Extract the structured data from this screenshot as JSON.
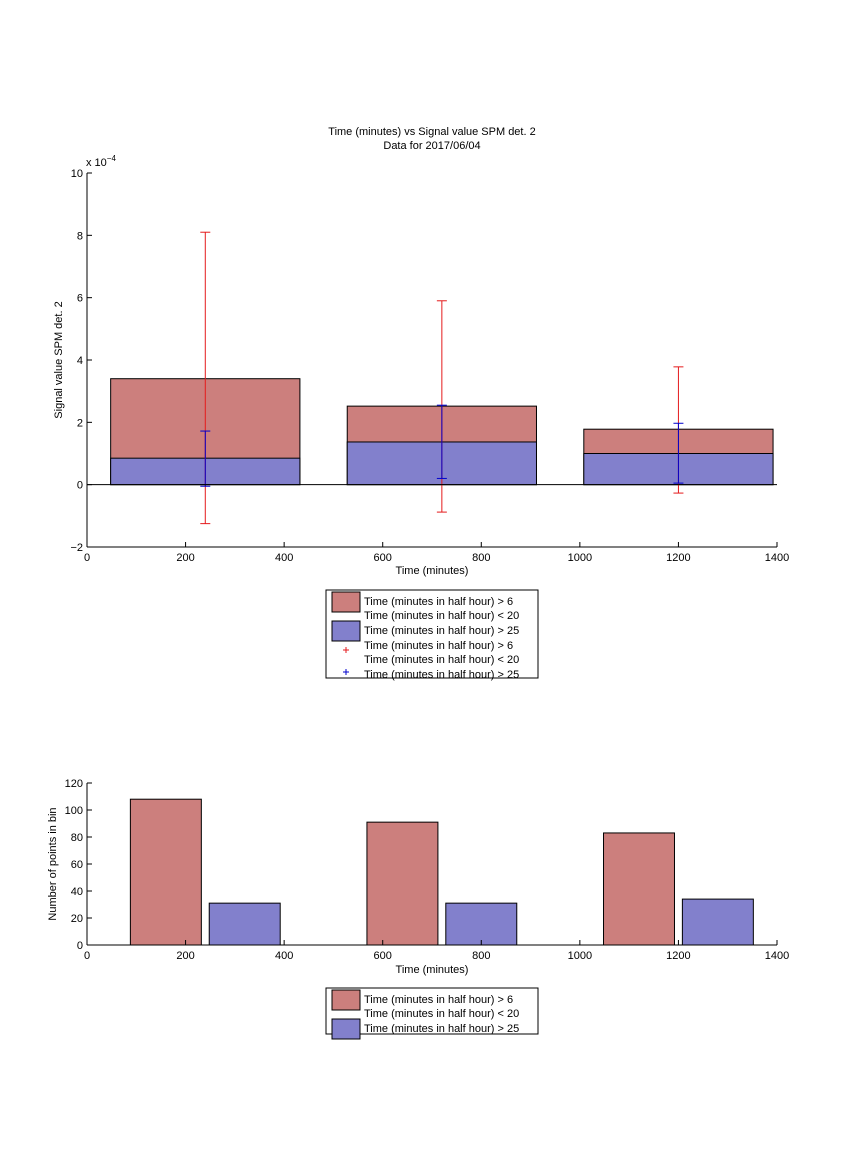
{
  "chart_data": [
    {
      "type": "bar",
      "title": "Time (minutes) vs Signal value SPM det. 2",
      "subtitle": "Data for 2017/06/04",
      "xlabel": "Time (minutes)",
      "ylabel": "Signal value SPM det. 2",
      "exponent_label": "x 10",
      "exponent_power": "−4",
      "xlim": [
        0,
        1400
      ],
      "ylim": [
        -2,
        10
      ],
      "xticks": [
        0,
        200,
        400,
        600,
        800,
        1000,
        1200,
        1400
      ],
      "yticks": [
        -2,
        0,
        2,
        4,
        6,
        8,
        10
      ],
      "xticklabels": [
        "0",
        "200",
        "400",
        "600",
        "800",
        "1000",
        "1200",
        "1400"
      ],
      "yticklabels": [
        "−2",
        "0",
        "2",
        "4",
        "6",
        "8",
        "10"
      ],
      "y_scale": "×1e-4",
      "bar_width": 384,
      "bars": [
        {
          "x": 240,
          "red": 3.4,
          "blue": 0.85
        },
        {
          "x": 720,
          "red": 2.52,
          "blue": 1.37
        },
        {
          "x": 1200,
          "red": 1.78,
          "blue": 1.0
        }
      ],
      "errorbars": [
        {
          "x": 240,
          "series": "red",
          "low": -1.25,
          "high": 8.1
        },
        {
          "x": 240,
          "series": "blue",
          "low": -0.05,
          "high": 1.72
        },
        {
          "x": 720,
          "series": "red",
          "low": -0.88,
          "high": 5.9
        },
        {
          "x": 720,
          "series": "blue",
          "low": 0.2,
          "high": 2.55
        },
        {
          "x": 1200,
          "series": "red",
          "low": -0.27,
          "high": 3.78
        },
        {
          "x": 1200,
          "series": "blue",
          "low": 0.05,
          "high": 1.97
        }
      ],
      "grid": false,
      "legend_position": "below",
      "legend": [
        {
          "kind": "patch",
          "color": "#cc7f7d",
          "line1": "Time (minutes in half hour) > 6",
          "line2": "Time (minutes in half hour) < 20"
        },
        {
          "kind": "patch",
          "color": "#8280cc",
          "line1": "Time (minutes in half hour) > 25"
        },
        {
          "kind": "marker",
          "color": "#e41a1c",
          "line1": "Time (minutes in half hour) > 6",
          "line2": "Time (minutes in half hour) < 20"
        },
        {
          "kind": "marker",
          "color": "#0000cc",
          "line1": "Time (minutes in half hour) > 25"
        }
      ]
    },
    {
      "type": "bar",
      "xlabel": "Time (minutes)",
      "ylabel": "Number of points in bin",
      "xlim": [
        0,
        1400
      ],
      "ylim": [
        0,
        120
      ],
      "xticks": [
        0,
        200,
        400,
        600,
        800,
        1000,
        1200,
        1400
      ],
      "yticks": [
        0,
        20,
        40,
        60,
        80,
        100,
        120
      ],
      "xticklabels": [
        "0",
        "200",
        "400",
        "600",
        "800",
        "1000",
        "1200",
        "1400"
      ],
      "yticklabels": [
        "0",
        "20",
        "40",
        "60",
        "80",
        "100",
        "120"
      ],
      "bar_width": 144,
      "series": [
        {
          "color": "#cc7f7d",
          "x": [
            160,
            640,
            1120
          ],
          "values": [
            108,
            91,
            83
          ]
        },
        {
          "color": "#8280cc",
          "x": [
            320,
            800,
            1280
          ],
          "values": [
            31,
            31,
            34
          ]
        }
      ],
      "grid": false,
      "legend_position": "below",
      "legend": [
        {
          "kind": "patch",
          "color": "#cc7f7d",
          "line1": "Time (minutes in half hour) > 6",
          "line2": "Time (minutes in half hour) < 20"
        },
        {
          "kind": "patch",
          "color": "#8280cc",
          "line1": "Time (minutes in half hour) > 25"
        }
      ]
    }
  ]
}
